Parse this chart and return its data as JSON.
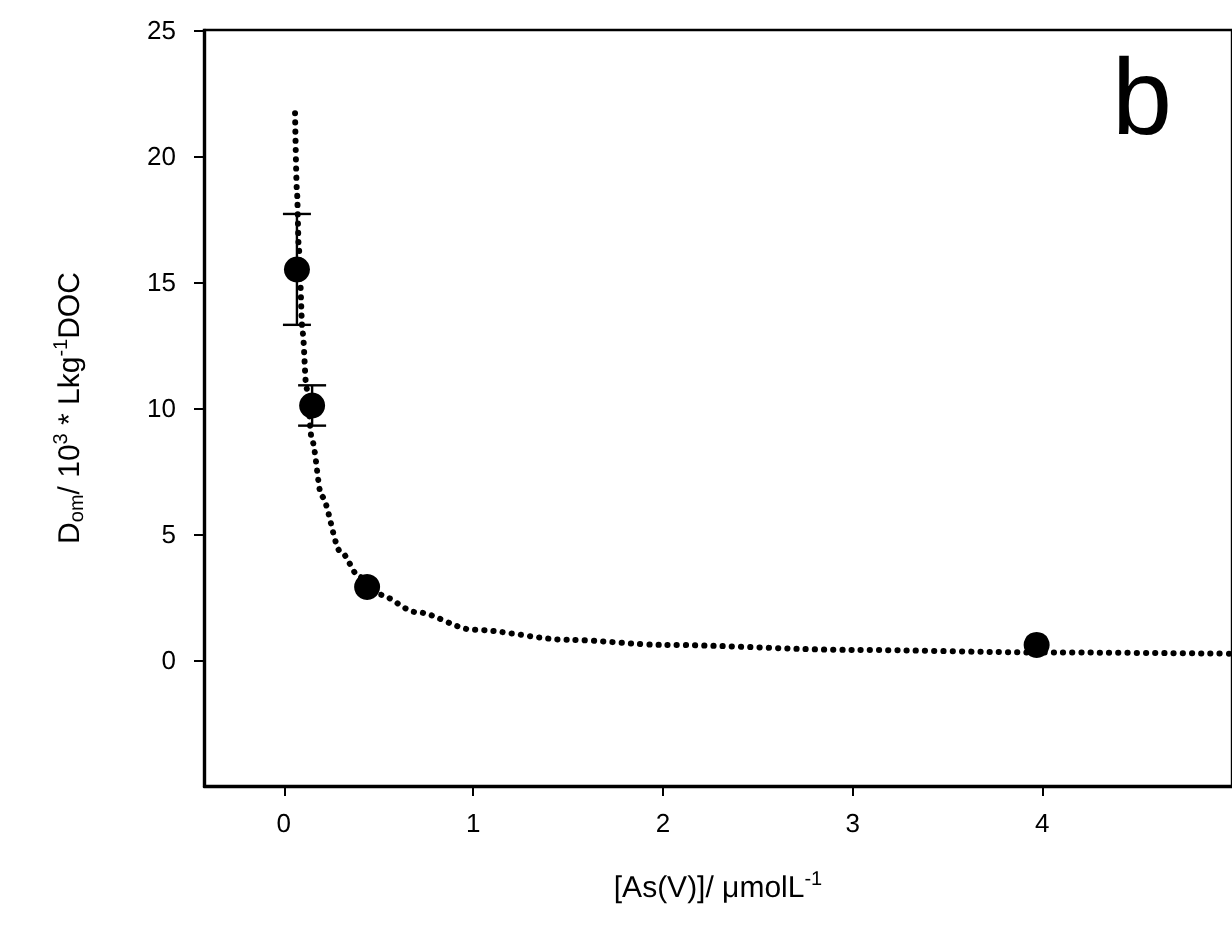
{
  "chart_data": {
    "type": "scatter",
    "xlabel": "[As(V)]/ μmolL$^{-1}$",
    "ylabel": "D$_{om}$/ 10$^{3}$ * Lkg$^{-1}$DOC",
    "annotations": [
      "b"
    ],
    "xlim": [
      -0.42,
      5.0
    ],
    "xticks": [
      0,
      1,
      2,
      3,
      4
    ],
    "ylim": [
      -5,
      25
    ],
    "yticks": [
      0,
      5,
      10,
      15,
      20,
      25
    ],
    "grid": false,
    "series": [
      {
        "color": "#000000",
        "marker": "circle",
        "x": [
          0.07,
          0.15,
          0.44,
          3.97
        ],
        "values": [
          15.5,
          10.1,
          2.9,
          0.6
        ],
        "errors": [
          2.2,
          0.8,
          null,
          null
        ]
      },
      {
        "type": "line",
        "color": "#000000",
        "marker": "none",
        "line_style": "dotted",
        "x": [
          0.06,
          0.07,
          0.08,
          0.1,
          0.12,
          0.15,
          0.2,
          0.3,
          0.4,
          0.5,
          0.7,
          1,
          1.5,
          2,
          3,
          4,
          5
        ],
        "values": [
          21.7,
          18.6,
          16.3,
          13,
          10.8,
          8.7,
          6.5,
          4.3,
          3.3,
          2.6,
          1.9,
          1.2,
          0.8,
          0.6,
          0.4,
          0.3,
          0.25
        ]
      }
    ]
  }
}
